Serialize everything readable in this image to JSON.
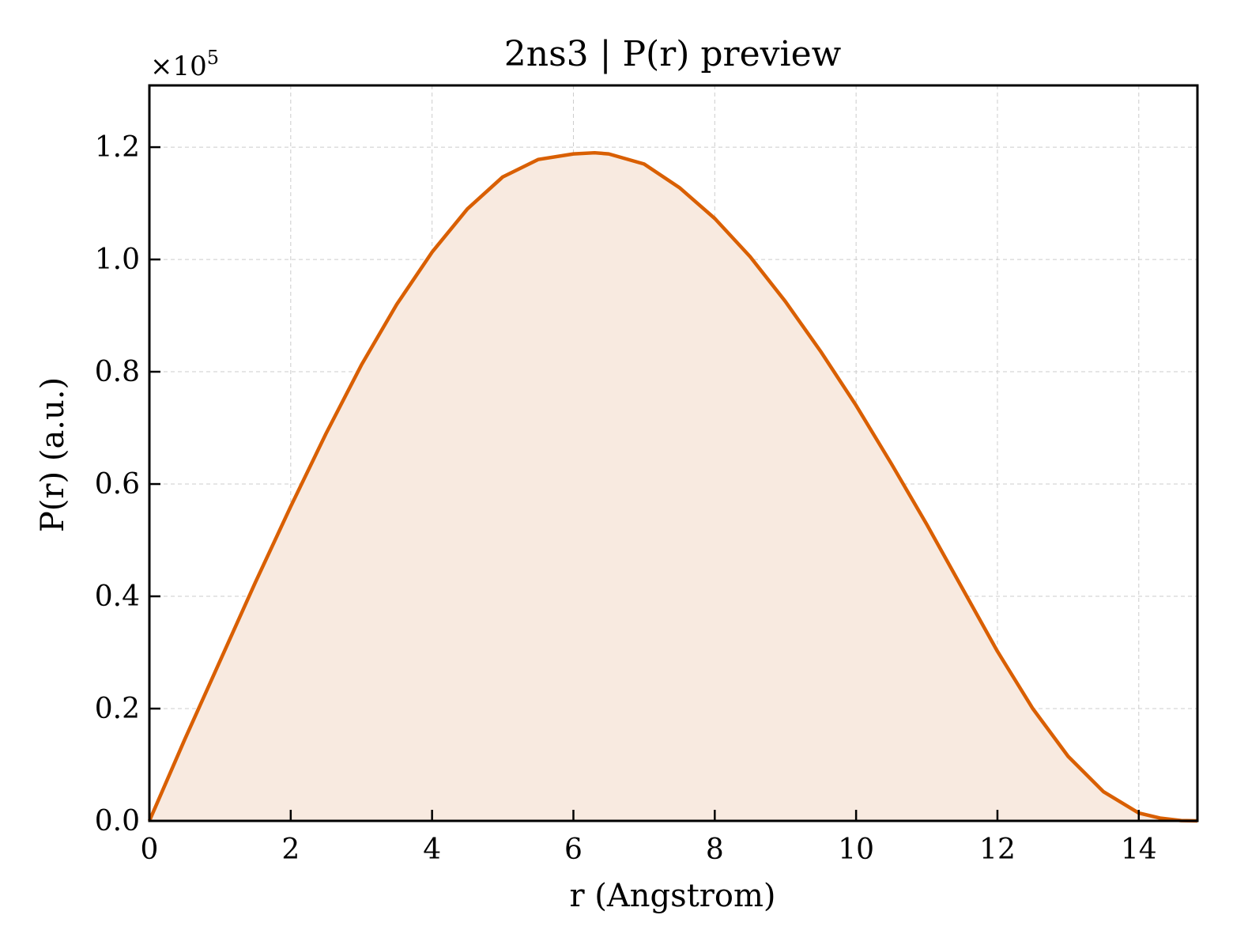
{
  "chart_data": {
    "type": "area",
    "title": "2ns3 | P(r) preview",
    "xlabel": "r (Angstrom)",
    "ylabel": "P(r) (a.u.)",
    "y_offset_text": "×10",
    "y_offset_exponent": "5",
    "y_scale": 100000,
    "xlim": [
      0,
      14.83
    ],
    "ylim": [
      0,
      1.31
    ],
    "xticks": [
      0,
      2,
      4,
      6,
      8,
      10,
      12,
      14
    ],
    "xtick_labels": [
      "0",
      "2",
      "4",
      "6",
      "8",
      "10",
      "12",
      "14"
    ],
    "yticks": [
      0.0,
      0.2,
      0.4,
      0.6,
      0.8,
      1.0,
      1.2
    ],
    "ytick_labels": [
      "0.0",
      "0.2",
      "0.4",
      "0.6",
      "0.8",
      "1.0",
      "1.2"
    ],
    "grid": true,
    "line_color": "#d95f02",
    "fill_color": "#f8eae0",
    "series": [
      {
        "x": [
          0.0,
          0.5,
          1.0,
          1.5,
          2.0,
          2.5,
          3.0,
          3.5,
          4.0,
          4.5,
          5.0,
          5.5,
          6.0,
          6.3,
          6.5,
          7.0,
          7.5,
          8.0,
          8.5,
          9.0,
          9.5,
          10.0,
          10.5,
          11.0,
          11.5,
          12.0,
          12.5,
          13.0,
          13.5,
          14.0,
          14.3,
          14.6,
          14.83
        ],
        "y": [
          0.0,
          0.145,
          0.285,
          0.425,
          0.56,
          0.69,
          0.812,
          0.92,
          1.013,
          1.09,
          1.147,
          1.178,
          1.188,
          1.19,
          1.188,
          1.17,
          1.128,
          1.073,
          1.005,
          0.925,
          0.836,
          0.74,
          0.636,
          0.528,
          0.415,
          0.302,
          0.2,
          0.115,
          0.052,
          0.014,
          0.005,
          0.0005,
          0.0
        ]
      }
    ]
  }
}
